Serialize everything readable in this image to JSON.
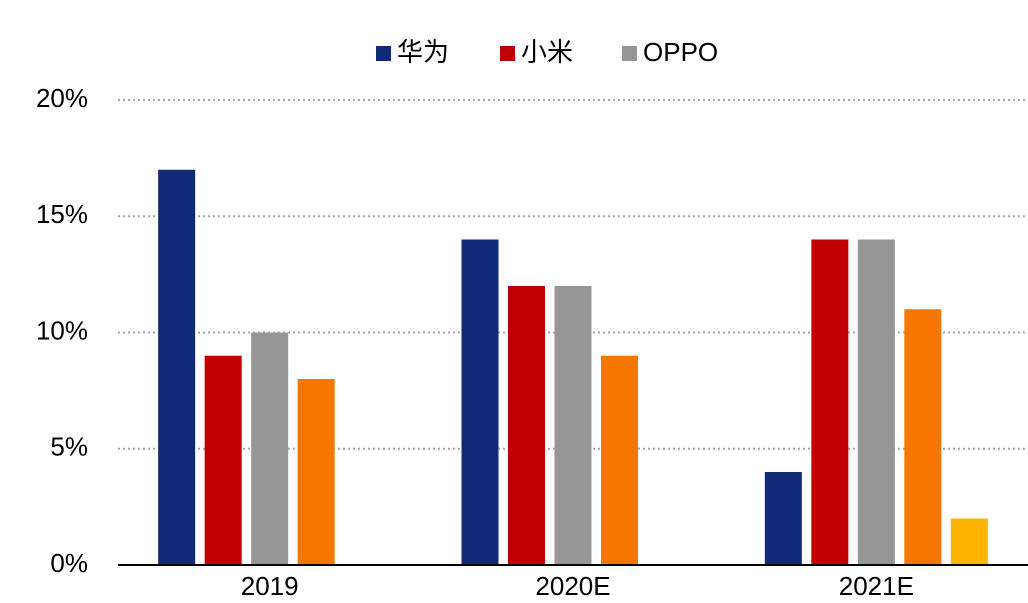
{
  "chart_data": {
    "type": "bar",
    "categories": [
      "2019",
      "2020E",
      "2021E"
    ],
    "series": [
      {
        "name": "华为",
        "color": "#102a77",
        "values": [
          17,
          14,
          4
        ]
      },
      {
        "name": "小米",
        "color": "#c00000",
        "values": [
          9,
          12,
          14
        ]
      },
      {
        "name": "OPPO",
        "color": "#969696",
        "values": [
          10,
          12,
          14
        ]
      },
      {
        "color": "#f57600",
        "values": [
          8,
          9,
          11
        ]
      },
      {
        "color": "#ffb400",
        "values": [
          null,
          null,
          2
        ]
      }
    ],
    "ylim": [
      0,
      20
    ],
    "yticks": [
      {
        "value": 0,
        "label": "0%"
      },
      {
        "value": 5,
        "label": "5%"
      },
      {
        "value": 10,
        "label": "10%"
      },
      {
        "value": 15,
        "label": "15%"
      },
      {
        "value": 20,
        "label": "20%"
      }
    ],
    "grid": true,
    "legend": "top"
  }
}
